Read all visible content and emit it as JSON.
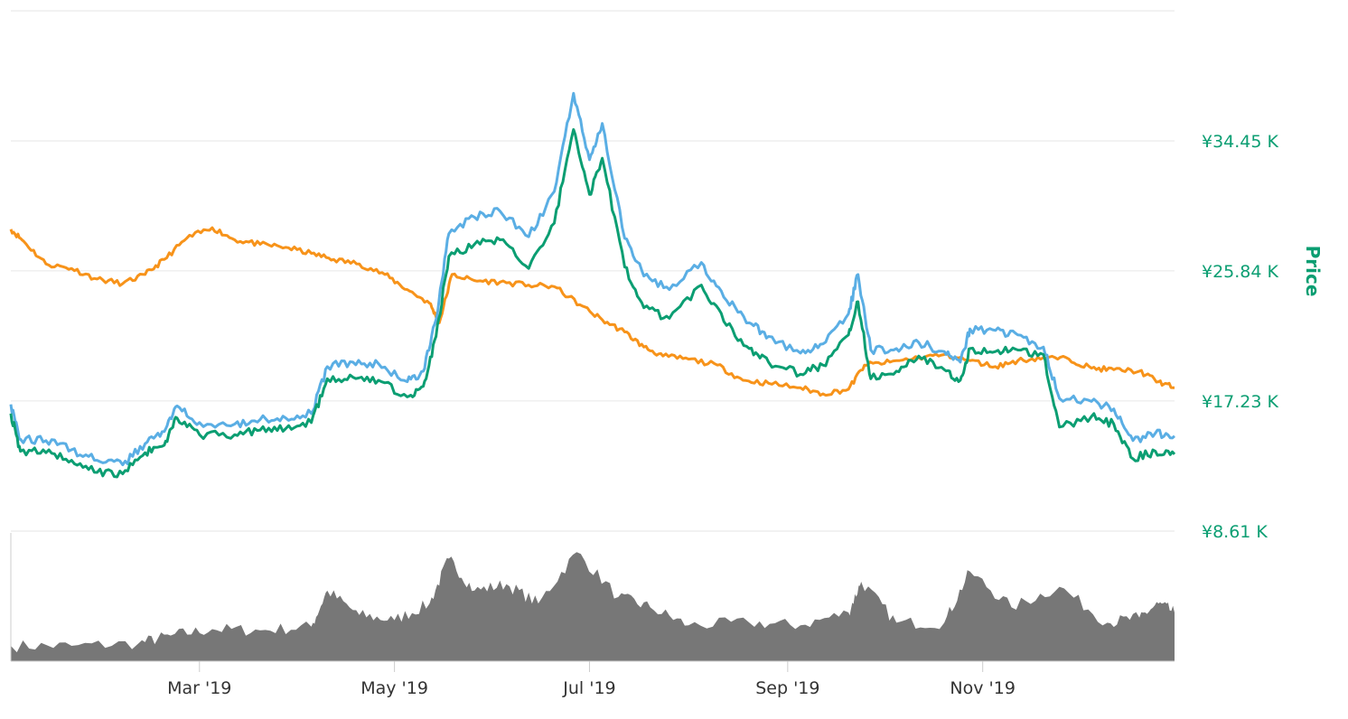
{
  "chart_data": {
    "type": "line",
    "title": "",
    "xlabel": "",
    "ylabel": "Price",
    "x_range": [
      "2019-01-01",
      "2019-12-31"
    ],
    "ylim": [
      8.61,
      43.06
    ],
    "y_unit": "K JPY",
    "y_tick_values": [
      8.61,
      17.23,
      25.84,
      34.45
    ],
    "y_tick_labels": [
      "¥8.61 K",
      "¥17.23 K",
      "¥25.84 K",
      "¥34.45 K"
    ],
    "x_tick_values": [
      "2019-03-01",
      "2019-05-01",
      "2019-07-01",
      "2019-09-01",
      "2019-11-01"
    ],
    "x_tick_labels": [
      "Mar '19",
      "May '19",
      "Jul '19",
      "Sep '19",
      "Nov '19"
    ],
    "grid": true,
    "legend": "none",
    "series": [
      {
        "color": "#f7931a",
        "points": [
          [
            "2019-01-01",
            28.6
          ],
          [
            "2019-01-05",
            27.8
          ],
          [
            "2019-01-12",
            26.3
          ],
          [
            "2019-01-20",
            26.0
          ],
          [
            "2019-01-28",
            25.3
          ],
          [
            "2019-02-05",
            25.0
          ],
          [
            "2019-02-12",
            25.6
          ],
          [
            "2019-02-18",
            26.6
          ],
          [
            "2019-02-25",
            28.0
          ],
          [
            "2019-03-05",
            28.7
          ],
          [
            "2019-03-12",
            27.9
          ],
          [
            "2019-03-20",
            27.6
          ],
          [
            "2019-03-28",
            27.4
          ],
          [
            "2019-04-05",
            27.0
          ],
          [
            "2019-04-12",
            26.6
          ],
          [
            "2019-04-20",
            26.3
          ],
          [
            "2019-04-28",
            25.6
          ],
          [
            "2019-05-05",
            24.6
          ],
          [
            "2019-05-12",
            23.7
          ],
          [
            "2019-05-15",
            22.4
          ],
          [
            "2019-05-19",
            25.6
          ],
          [
            "2019-05-26",
            25.2
          ],
          [
            "2019-06-03",
            25.1
          ],
          [
            "2019-06-12",
            24.9
          ],
          [
            "2019-06-20",
            24.8
          ],
          [
            "2019-06-28",
            23.6
          ],
          [
            "2019-07-05",
            22.6
          ],
          [
            "2019-07-12",
            21.8
          ],
          [
            "2019-07-18",
            20.8
          ],
          [
            "2019-07-24",
            20.2
          ],
          [
            "2019-08-01",
            20.0
          ],
          [
            "2019-08-10",
            19.6
          ],
          [
            "2019-08-18",
            18.6
          ],
          [
            "2019-08-26",
            18.4
          ],
          [
            "2019-09-05",
            18.1
          ],
          [
            "2019-09-12",
            17.7
          ],
          [
            "2019-09-20",
            18.0
          ],
          [
            "2019-09-25",
            19.6
          ],
          [
            "2019-10-03",
            19.8
          ],
          [
            "2019-10-12",
            20.1
          ],
          [
            "2019-10-20",
            20.3
          ],
          [
            "2019-10-28",
            19.9
          ],
          [
            "2019-11-05",
            19.5
          ],
          [
            "2019-11-12",
            19.9
          ],
          [
            "2019-11-20",
            20.1
          ],
          [
            "2019-11-28",
            20.0
          ],
          [
            "2019-12-05",
            19.4
          ],
          [
            "2019-12-12",
            19.3
          ],
          [
            "2019-12-20",
            19.2
          ],
          [
            "2019-12-26",
            18.5
          ],
          [
            "2019-12-31",
            18.1
          ]
        ]
      },
      {
        "color": "#5aaee4",
        "points": [
          [
            "2019-01-01",
            17.0
          ],
          [
            "2019-01-04",
            14.7
          ],
          [
            "2019-01-12",
            14.6
          ],
          [
            "2019-01-20",
            14.0
          ],
          [
            "2019-01-28",
            13.3
          ],
          [
            "2019-02-05",
            13.0
          ],
          [
            "2019-02-12",
            14.4
          ],
          [
            "2019-02-18",
            15.2
          ],
          [
            "2019-02-22",
            16.9
          ],
          [
            "2019-03-01",
            15.8
          ],
          [
            "2019-03-12",
            15.7
          ],
          [
            "2019-03-20",
            16.0
          ],
          [
            "2019-03-28",
            16.1
          ],
          [
            "2019-04-05",
            16.4
          ],
          [
            "2019-04-10",
            19.5
          ],
          [
            "2019-04-18",
            19.8
          ],
          [
            "2019-04-26",
            19.7
          ],
          [
            "2019-05-05",
            18.5
          ],
          [
            "2019-05-10",
            19.2
          ],
          [
            "2019-05-14",
            22.6
          ],
          [
            "2019-05-18",
            28.3
          ],
          [
            "2019-05-26",
            29.4
          ],
          [
            "2019-06-03",
            29.8
          ],
          [
            "2019-06-12",
            28.1
          ],
          [
            "2019-06-20",
            31.1
          ],
          [
            "2019-06-26",
            37.6
          ],
          [
            "2019-07-01",
            33.2
          ],
          [
            "2019-07-05",
            35.6
          ],
          [
            "2019-07-12",
            28.0
          ],
          [
            "2019-07-18",
            25.5
          ],
          [
            "2019-07-26",
            24.6
          ],
          [
            "2019-08-05",
            26.4
          ],
          [
            "2019-08-12",
            24.1
          ],
          [
            "2019-08-20",
            22.4
          ],
          [
            "2019-08-26",
            21.5
          ],
          [
            "2019-09-05",
            20.4
          ],
          [
            "2019-09-12",
            21.0
          ],
          [
            "2019-09-20",
            23.0
          ],
          [
            "2019-09-23",
            25.6
          ],
          [
            "2019-09-27",
            20.6
          ],
          [
            "2019-10-05",
            20.7
          ],
          [
            "2019-10-12",
            21.1
          ],
          [
            "2019-10-20",
            20.5
          ],
          [
            "2019-10-25",
            19.8
          ],
          [
            "2019-10-28",
            22.0
          ],
          [
            "2019-11-05",
            21.9
          ],
          [
            "2019-11-12",
            21.6
          ],
          [
            "2019-11-20",
            20.8
          ],
          [
            "2019-11-25",
            17.4
          ],
          [
            "2019-12-05",
            17.2
          ],
          [
            "2019-12-12",
            16.7
          ],
          [
            "2019-12-18",
            14.6
          ],
          [
            "2019-12-25",
            15.1
          ],
          [
            "2019-12-31",
            14.9
          ]
        ]
      },
      {
        "color": "#0b9e72",
        "points": [
          [
            "2019-01-01",
            16.4
          ],
          [
            "2019-01-04",
            13.9
          ],
          [
            "2019-01-12",
            13.8
          ],
          [
            "2019-01-20",
            13.3
          ],
          [
            "2019-01-28",
            12.5
          ],
          [
            "2019-02-05",
            12.4
          ],
          [
            "2019-02-12",
            13.8
          ],
          [
            "2019-02-18",
            14.3
          ],
          [
            "2019-02-22",
            16.1
          ],
          [
            "2019-03-01",
            15.0
          ],
          [
            "2019-03-12",
            15.0
          ],
          [
            "2019-03-20",
            15.3
          ],
          [
            "2019-03-28",
            15.4
          ],
          [
            "2019-04-05",
            15.8
          ],
          [
            "2019-04-10",
            18.7
          ],
          [
            "2019-04-18",
            18.8
          ],
          [
            "2019-04-26",
            18.6
          ],
          [
            "2019-05-05",
            17.5
          ],
          [
            "2019-05-10",
            18.2
          ],
          [
            "2019-05-14",
            21.5
          ],
          [
            "2019-05-18",
            26.8
          ],
          [
            "2019-05-26",
            27.6
          ],
          [
            "2019-06-03",
            27.9
          ],
          [
            "2019-06-12",
            26.0
          ],
          [
            "2019-06-20",
            29.0
          ],
          [
            "2019-06-26",
            35.2
          ],
          [
            "2019-07-01",
            30.9
          ],
          [
            "2019-07-05",
            33.3
          ],
          [
            "2019-07-12",
            26.1
          ],
          [
            "2019-07-18",
            23.4
          ],
          [
            "2019-07-26",
            22.7
          ],
          [
            "2019-08-05",
            24.9
          ],
          [
            "2019-08-12",
            22.5
          ],
          [
            "2019-08-20",
            20.7
          ],
          [
            "2019-08-26",
            19.8
          ],
          [
            "2019-09-05",
            19.0
          ],
          [
            "2019-09-12",
            19.6
          ],
          [
            "2019-09-20",
            21.6
          ],
          [
            "2019-09-23",
            23.8
          ],
          [
            "2019-09-27",
            18.7
          ],
          [
            "2019-10-05",
            19.2
          ],
          [
            "2019-10-12",
            20.2
          ],
          [
            "2019-10-20",
            19.3
          ],
          [
            "2019-10-25",
            18.6
          ],
          [
            "2019-10-28",
            20.7
          ],
          [
            "2019-11-05",
            20.5
          ],
          [
            "2019-11-12",
            20.6
          ],
          [
            "2019-11-20",
            20.3
          ],
          [
            "2019-11-25",
            15.5
          ],
          [
            "2019-12-05",
            16.2
          ],
          [
            "2019-12-12",
            15.7
          ],
          [
            "2019-12-18",
            13.4
          ],
          [
            "2019-12-25",
            13.9
          ],
          [
            "2019-12-31",
            13.7
          ]
        ]
      }
    ],
    "volume": {
      "type": "area",
      "color": "#777777",
      "points": [
        [
          "2019-01-01",
          0.12
        ],
        [
          "2019-01-20",
          0.12
        ],
        [
          "2019-02-10",
          0.14
        ],
        [
          "2019-02-20",
          0.2
        ],
        [
          "2019-03-05",
          0.25
        ],
        [
          "2019-03-20",
          0.24
        ],
        [
          "2019-04-05",
          0.27
        ],
        [
          "2019-04-10",
          0.55
        ],
        [
          "2019-04-20",
          0.36
        ],
        [
          "2019-05-01",
          0.32
        ],
        [
          "2019-05-12",
          0.45
        ],
        [
          "2019-05-18",
          0.8
        ],
        [
          "2019-05-26",
          0.55
        ],
        [
          "2019-06-05",
          0.6
        ],
        [
          "2019-06-15",
          0.45
        ],
        [
          "2019-06-27",
          0.85
        ],
        [
          "2019-07-10",
          0.5
        ],
        [
          "2019-07-20",
          0.42
        ],
        [
          "2019-08-01",
          0.28
        ],
        [
          "2019-08-20",
          0.3
        ],
        [
          "2019-09-05",
          0.28
        ],
        [
          "2019-09-20",
          0.38
        ],
        [
          "2019-09-24",
          0.62
        ],
        [
          "2019-10-05",
          0.3
        ],
        [
          "2019-10-20",
          0.3
        ],
        [
          "2019-10-28",
          0.7
        ],
        [
          "2019-11-10",
          0.42
        ],
        [
          "2019-11-25",
          0.58
        ],
        [
          "2019-12-10",
          0.3
        ],
        [
          "2019-12-20",
          0.34
        ],
        [
          "2019-12-26",
          0.45
        ],
        [
          "2019-12-31",
          0.38
        ]
      ]
    }
  }
}
